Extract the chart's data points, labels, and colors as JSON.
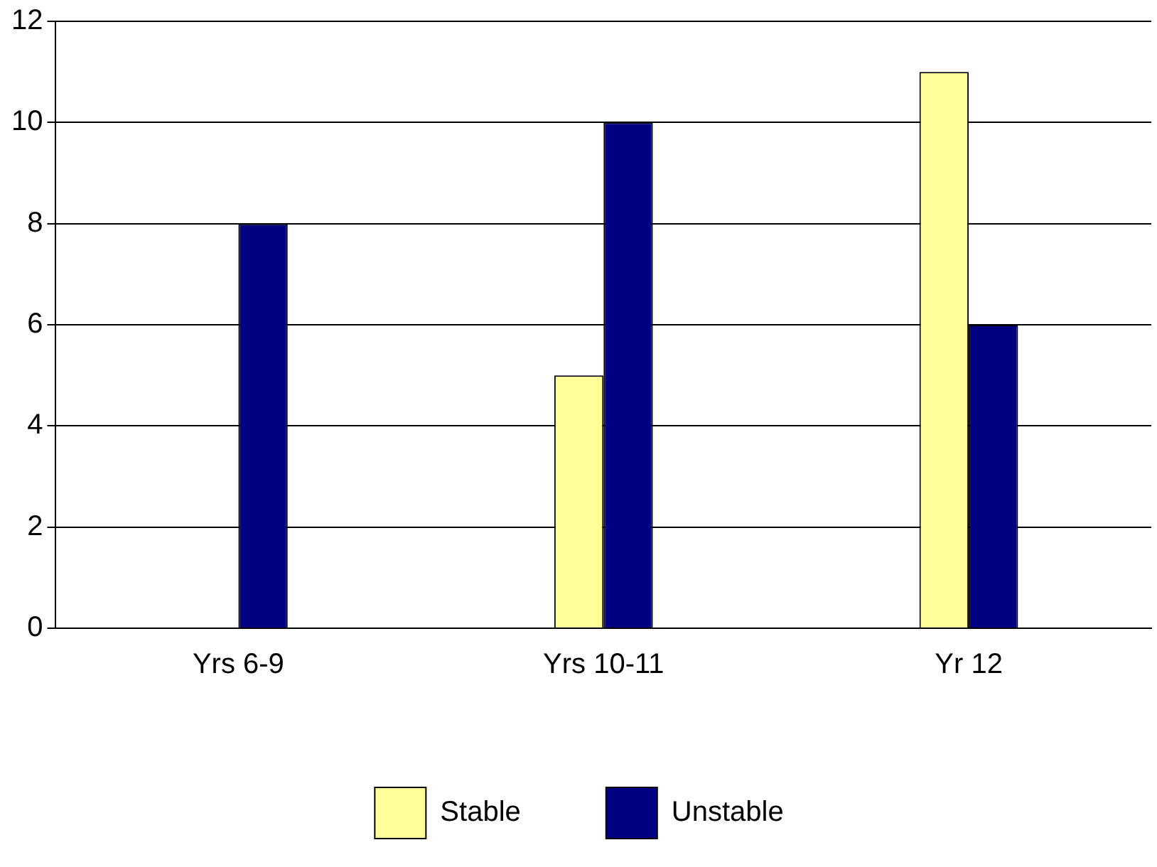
{
  "chart_data": {
    "type": "bar",
    "categories": [
      "Yrs 6-9",
      "Yrs 10-11",
      "Yr 12"
    ],
    "series": [
      {
        "name": "Stable",
        "color": "#ffff99",
        "values": [
          0,
          5,
          11
        ]
      },
      {
        "name": "Unstable",
        "color": "#000080",
        "values": [
          8,
          10,
          6
        ]
      }
    ],
    "ylim": [
      0,
      12
    ],
    "yticks": [
      0,
      2,
      4,
      6,
      8,
      10,
      12
    ],
    "grid": "y",
    "legend": "bottom"
  }
}
